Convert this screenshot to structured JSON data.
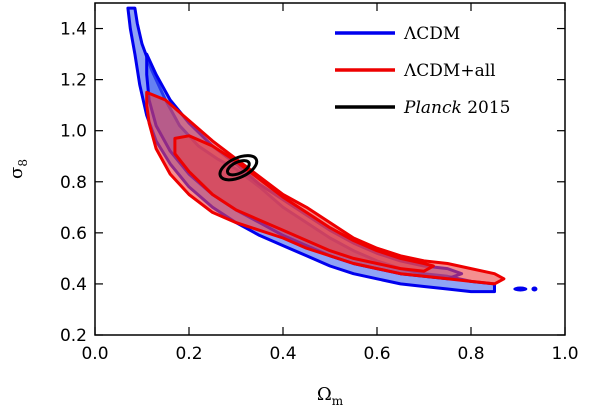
{
  "chart_data": {
    "type": "contour",
    "xlabel": "Ωm",
    "ylabel": "σ8",
    "xlim": [
      0.0,
      1.0
    ],
    "ylim": [
      0.2,
      1.5
    ],
    "xticks": [
      "0.0",
      "0.2",
      "0.4",
      "0.6",
      "0.8",
      "1.0"
    ],
    "yticks": [
      "0.2",
      "0.4",
      "0.6",
      "0.8",
      "1.0",
      "1.2",
      "1.4"
    ],
    "grid": false,
    "legend_placement": "top-right",
    "series": [
      {
        "name": "ΛCDM",
        "color": "#0000ee",
        "fill": "#4466ee",
        "outer": [
          [
            0.07,
            1.48
          ],
          [
            0.085,
            1.48
          ],
          [
            0.09,
            1.42
          ],
          [
            0.1,
            1.34
          ],
          [
            0.12,
            1.24
          ],
          [
            0.15,
            1.12
          ],
          [
            0.18,
            1.02
          ],
          [
            0.22,
            0.94
          ],
          [
            0.26,
            0.89
          ],
          [
            0.3,
            0.85
          ],
          [
            0.35,
            0.78
          ],
          [
            0.4,
            0.7
          ],
          [
            0.45,
            0.64
          ],
          [
            0.5,
            0.58
          ],
          [
            0.55,
            0.53
          ],
          [
            0.6,
            0.49
          ],
          [
            0.65,
            0.46
          ],
          [
            0.7,
            0.44
          ],
          [
            0.75,
            0.43
          ],
          [
            0.8,
            0.41
          ],
          [
            0.85,
            0.4
          ],
          [
            0.85,
            0.37
          ],
          [
            0.8,
            0.37
          ],
          [
            0.75,
            0.38
          ],
          [
            0.7,
            0.39
          ],
          [
            0.65,
            0.4
          ],
          [
            0.6,
            0.42
          ],
          [
            0.55,
            0.44
          ],
          [
            0.5,
            0.47
          ],
          [
            0.45,
            0.51
          ],
          [
            0.4,
            0.55
          ],
          [
            0.35,
            0.59
          ],
          [
            0.3,
            0.64
          ],
          [
            0.25,
            0.7
          ],
          [
            0.2,
            0.78
          ],
          [
            0.16,
            0.87
          ],
          [
            0.13,
            0.96
          ],
          [
            0.11,
            1.06
          ],
          [
            0.095,
            1.18
          ],
          [
            0.085,
            1.3
          ],
          [
            0.075,
            1.4
          ]
        ],
        "inner": [
          [
            0.11,
            1.3
          ],
          [
            0.13,
            1.22
          ],
          [
            0.16,
            1.12
          ],
          [
            0.2,
            1.03
          ],
          [
            0.25,
            0.94
          ],
          [
            0.3,
            0.87
          ],
          [
            0.35,
            0.79
          ],
          [
            0.4,
            0.73
          ],
          [
            0.45,
            0.67
          ],
          [
            0.5,
            0.61
          ],
          [
            0.55,
            0.56
          ],
          [
            0.6,
            0.52
          ],
          [
            0.65,
            0.49
          ],
          [
            0.7,
            0.47
          ],
          [
            0.75,
            0.46
          ],
          [
            0.78,
            0.44
          ],
          [
            0.75,
            0.42
          ],
          [
            0.7,
            0.43
          ],
          [
            0.65,
            0.44
          ],
          [
            0.6,
            0.46
          ],
          [
            0.55,
            0.48
          ],
          [
            0.5,
            0.51
          ],
          [
            0.45,
            0.55
          ],
          [
            0.4,
            0.59
          ],
          [
            0.35,
            0.64
          ],
          [
            0.3,
            0.69
          ],
          [
            0.25,
            0.75
          ],
          [
            0.2,
            0.83
          ],
          [
            0.16,
            0.92
          ],
          [
            0.13,
            1.02
          ],
          [
            0.115,
            1.12
          ],
          [
            0.11,
            1.22
          ]
        ],
        "islands": [
          [
            0.905,
            0.38
          ],
          [
            0.935,
            0.38
          ]
        ]
      },
      {
        "name": "ΛCDM+all",
        "color": "#ee0000",
        "fill": "#ee4444",
        "outer": [
          [
            0.11,
            1.15
          ],
          [
            0.15,
            1.12
          ],
          [
            0.2,
            1.04
          ],
          [
            0.25,
            0.96
          ],
          [
            0.3,
            0.89
          ],
          [
            0.35,
            0.82
          ],
          [
            0.4,
            0.75
          ],
          [
            0.45,
            0.7
          ],
          [
            0.5,
            0.64
          ],
          [
            0.55,
            0.58
          ],
          [
            0.6,
            0.54
          ],
          [
            0.65,
            0.51
          ],
          [
            0.7,
            0.49
          ],
          [
            0.75,
            0.48
          ],
          [
            0.8,
            0.46
          ],
          [
            0.85,
            0.44
          ],
          [
            0.87,
            0.42
          ],
          [
            0.85,
            0.4
          ],
          [
            0.8,
            0.41
          ],
          [
            0.75,
            0.42
          ],
          [
            0.7,
            0.43
          ],
          [
            0.65,
            0.44
          ],
          [
            0.6,
            0.46
          ],
          [
            0.55,
            0.48
          ],
          [
            0.5,
            0.51
          ],
          [
            0.45,
            0.54
          ],
          [
            0.4,
            0.58
          ],
          [
            0.35,
            0.61
          ],
          [
            0.3,
            0.64
          ],
          [
            0.25,
            0.68
          ],
          [
            0.2,
            0.75
          ],
          [
            0.16,
            0.83
          ],
          [
            0.13,
            0.93
          ],
          [
            0.115,
            1.03
          ],
          [
            0.11,
            1.1
          ]
        ],
        "inner": [
          [
            0.17,
            0.97
          ],
          [
            0.2,
            0.98
          ],
          [
            0.25,
            0.94
          ],
          [
            0.3,
            0.88
          ],
          [
            0.35,
            0.81
          ],
          [
            0.4,
            0.74
          ],
          [
            0.45,
            0.68
          ],
          [
            0.5,
            0.62
          ],
          [
            0.55,
            0.57
          ],
          [
            0.6,
            0.53
          ],
          [
            0.65,
            0.5
          ],
          [
            0.7,
            0.48
          ],
          [
            0.72,
            0.47
          ],
          [
            0.7,
            0.45
          ],
          [
            0.65,
            0.46
          ],
          [
            0.6,
            0.48
          ],
          [
            0.55,
            0.5
          ],
          [
            0.5,
            0.53
          ],
          [
            0.45,
            0.57
          ],
          [
            0.4,
            0.61
          ],
          [
            0.35,
            0.65
          ],
          [
            0.3,
            0.69
          ],
          [
            0.25,
            0.75
          ],
          [
            0.2,
            0.84
          ],
          [
            0.17,
            0.91
          ]
        ]
      },
      {
        "name": "Planck 2015",
        "color": "#000000",
        "ellipse": {
          "cx": 0.305,
          "cy": 0.855,
          "rx": 0.042,
          "ry": 0.038
        },
        "ellipse_inner": {
          "cx": 0.305,
          "cy": 0.855,
          "rx": 0.025,
          "ry": 0.022
        }
      }
    ],
    "legend": [
      {
        "label": "ΛCDM",
        "color": "#0000ee"
      },
      {
        "label": "ΛCDM+all",
        "color": "#ee0000"
      },
      {
        "label_italic": "Planck",
        "label_rest": " 2015",
        "color": "#000000"
      }
    ]
  }
}
